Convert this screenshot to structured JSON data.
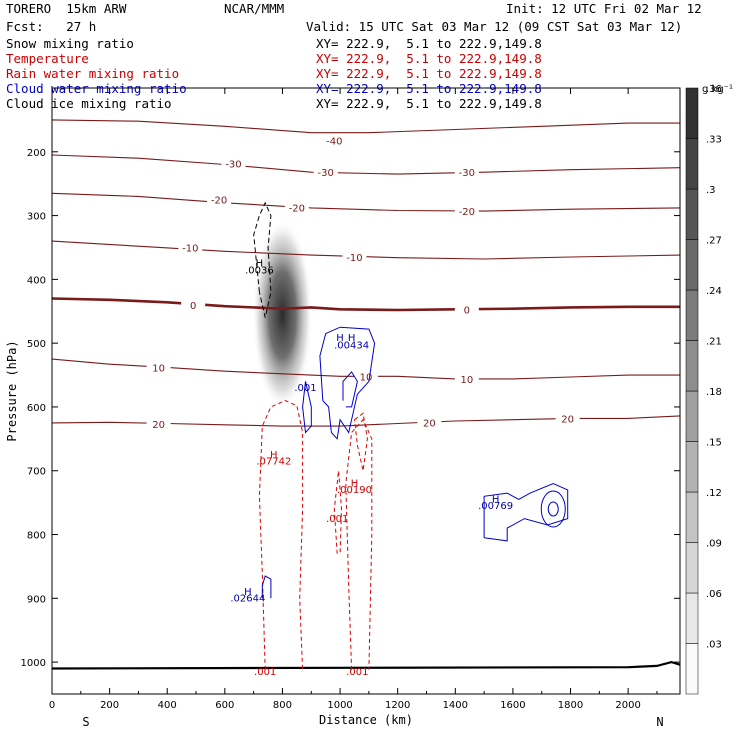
{
  "header": {
    "model": "TORERO  15km ARW",
    "center": "NCAR/MMM",
    "init": "Init: 12 UTC Fri 02 Mar 12",
    "fcst": "Fcst:   27 h",
    "valid": "Valid: 15 UTC Sat 03 Mar 12 (09 CST Sat 03 Mar 12)",
    "fields": [
      {
        "name": "Snow mixing ratio",
        "color": "#000000",
        "xy": "XY= 222.9,  5.1 to 222.9,149.8"
      },
      {
        "name": "Temperature",
        "color": "#cc0000",
        "xy": "XY= 222.9,  5.1 to 222.9,149.8"
      },
      {
        "name": "Rain water mixing ratio",
        "color": "#cc0000",
        "xy": "XY= 222.9,  5.1 to 222.9,149.8"
      },
      {
        "name": "Cloud water mixing ratio",
        "color": "#0000cc",
        "xy": "XY= 222.9,  5.1 to 222.9,149.8"
      },
      {
        "name": "Cloud ice mixing ratio",
        "color": "#000000",
        "xy": "XY= 222.9,  5.1 to 222.9,149.8"
      }
    ]
  },
  "chart_data": {
    "type": "cross-section",
    "xlabel": "Distance (km)",
    "ylabel": "Pressure (hPa)",
    "xlim": [
      0,
      2180
    ],
    "ylim": [
      1050,
      100
    ],
    "x_ticks": [
      0,
      200,
      400,
      600,
      800,
      1000,
      1200,
      1400,
      1600,
      1800,
      2000
    ],
    "y_ticks": [
      200,
      300,
      400,
      500,
      600,
      700,
      800,
      900,
      1000
    ],
    "left_endpoint": "S",
    "right_endpoint": "N",
    "colorbar": {
      "unit": "g kg⁻¹",
      "ticks": [
        ".03",
        ".06",
        ".09",
        ".12",
        ".15",
        ".18",
        ".21",
        ".24",
        ".27",
        ".3",
        ".33",
        ".36"
      ]
    },
    "temperature_contours": [
      {
        "value": -40,
        "label": "-40",
        "points": [
          [
            0,
            150
          ],
          [
            300,
            152
          ],
          [
            600,
            160
          ],
          [
            900,
            170
          ],
          [
            1100,
            170
          ],
          [
            1400,
            165
          ],
          [
            1700,
            160
          ],
          [
            2000,
            155
          ],
          [
            2180,
            155
          ]
        ],
        "label_at": [
          [
            980,
            182
          ]
        ]
      },
      {
        "value": -30,
        "label": "-30",
        "points": [
          [
            0,
            205
          ],
          [
            300,
            210
          ],
          [
            600,
            220
          ],
          [
            900,
            232
          ],
          [
            1200,
            235
          ],
          [
            1500,
            232
          ],
          [
            1800,
            228
          ],
          [
            2180,
            225
          ]
        ],
        "label_at": [
          [
            630,
            218
          ],
          [
            950,
            232
          ],
          [
            1440,
            232
          ]
        ]
      },
      {
        "value": -20,
        "label": "-20",
        "points": [
          [
            0,
            265
          ],
          [
            300,
            270
          ],
          [
            600,
            280
          ],
          [
            900,
            288
          ],
          [
            1200,
            292
          ],
          [
            1500,
            293
          ],
          [
            1800,
            290
          ],
          [
            2180,
            288
          ]
        ],
        "label_at": [
          [
            580,
            275
          ],
          [
            850,
            287
          ],
          [
            1440,
            293
          ]
        ]
      },
      {
        "value": -10,
        "label": "-10",
        "points": [
          [
            0,
            340
          ],
          [
            300,
            348
          ],
          [
            600,
            356
          ],
          [
            900,
            362
          ],
          [
            1200,
            366
          ],
          [
            1500,
            368
          ],
          [
            1800,
            365
          ],
          [
            2180,
            362
          ]
        ],
        "label_at": [
          [
            480,
            350
          ],
          [
            1050,
            365
          ]
        ]
      },
      {
        "value": 0,
        "label": "0",
        "points": [
          [
            0,
            430
          ],
          [
            200,
            432
          ],
          [
            400,
            436
          ],
          [
            600,
            442
          ],
          [
            800,
            446
          ],
          [
            900,
            444
          ],
          [
            1000,
            447
          ],
          [
            1200,
            448
          ],
          [
            1400,
            447
          ],
          [
            1600,
            446
          ],
          [
            1800,
            444
          ],
          [
            2000,
            443
          ],
          [
            2180,
            443
          ]
        ],
        "label_at": [
          [
            490,
            440
          ],
          [
            1440,
            447
          ]
        ]
      },
      {
        "value": 10,
        "label": "10",
        "points": [
          [
            0,
            525
          ],
          [
            200,
            533
          ],
          [
            400,
            538
          ],
          [
            600,
            544
          ],
          [
            800,
            548
          ],
          [
            1000,
            552
          ],
          [
            1200,
            552
          ],
          [
            1400,
            556
          ],
          [
            1600,
            556
          ],
          [
            1800,
            553
          ],
          [
            2000,
            550
          ],
          [
            2180,
            550
          ]
        ],
        "label_at": [
          [
            370,
            538
          ],
          [
            1090,
            552
          ],
          [
            1440,
            556
          ]
        ]
      },
      {
        "value": 20,
        "label": "20",
        "points": [
          [
            0,
            625
          ],
          [
            200,
            624
          ],
          [
            400,
            626
          ],
          [
            600,
            628
          ],
          [
            800,
            630
          ],
          [
            1000,
            630
          ],
          [
            1200,
            626
          ],
          [
            1400,
            622
          ],
          [
            1600,
            620
          ],
          [
            1800,
            618
          ],
          [
            2000,
            618
          ],
          [
            2180,
            614
          ]
        ],
        "label_at": [
          [
            370,
            627
          ],
          [
            1310,
            624
          ],
          [
            1790,
            618
          ]
        ]
      }
    ],
    "rain_labels": [
      {
        "text": "H",
        "x": 770,
        "p": 680
      },
      {
        "text": ".07742",
        "x": 770,
        "p": 690
      },
      {
        "text": "H",
        "x": 1050,
        "p": 725
      },
      {
        "text": ".00190",
        "x": 1050,
        "p": 735
      },
      {
        "text": ".001",
        "x": 990,
        "p": 780
      },
      {
        "text": ".001",
        "x": 740,
        "p": 1020
      },
      {
        "text": ".001",
        "x": 1060,
        "p": 1020
      }
    ],
    "cloud_water_labels": [
      {
        "text": "H",
        "x": 1000,
        "p": 497
      },
      {
        "text": "H",
        "x": 1040,
        "p": 497
      },
      {
        "text": ".00434",
        "x": 1040,
        "p": 508
      },
      {
        "text": ".001",
        "x": 880,
        "p": 575
      },
      {
        "text": "H",
        "x": 680,
        "p": 895
      },
      {
        "text": ".02644",
        "x": 680,
        "p": 905
      },
      {
        "text": "H",
        "x": 1540,
        "p": 750
      },
      {
        "text": ".00769",
        "x": 1540,
        "p": 760
      }
    ],
    "ice_labels": [
      {
        "text": "H",
        "x": 720,
        "p": 380
      },
      {
        "text": ".0036",
        "x": 720,
        "p": 391
      }
    ]
  }
}
